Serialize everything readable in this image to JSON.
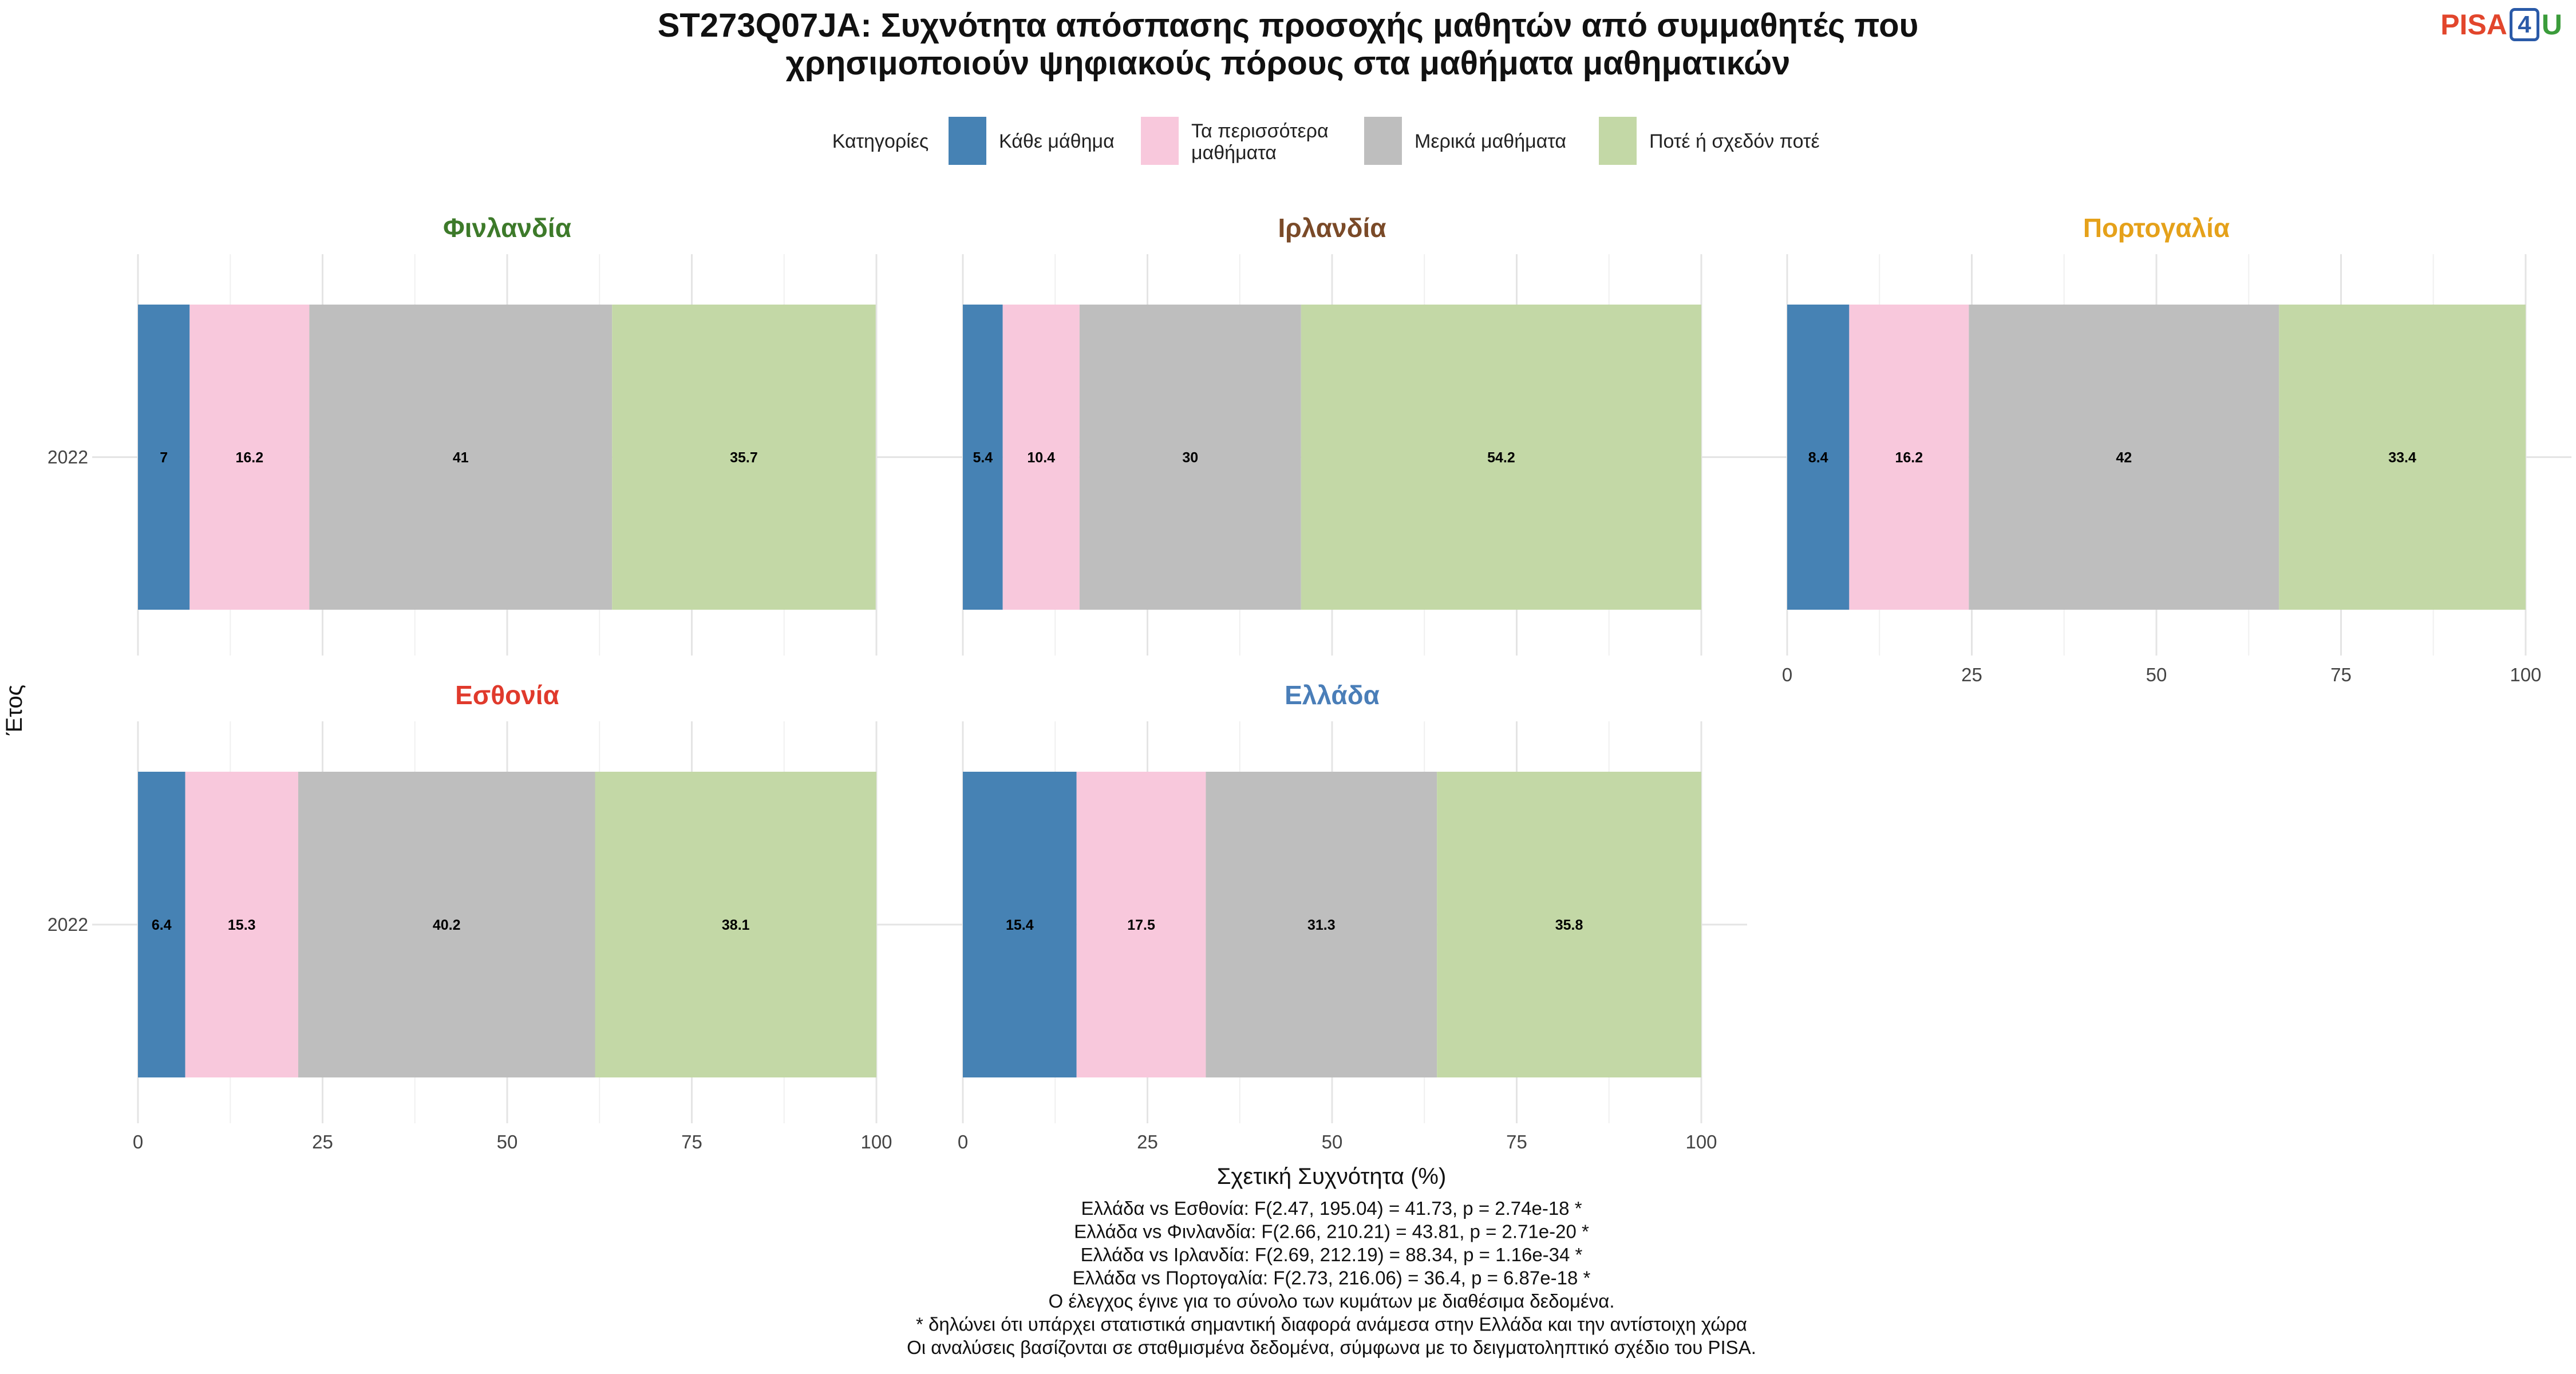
{
  "title_lines": [
    "ST273Q07JA: Συχνότητα απόσπασης προσοχής μαθητών από συμμαθητές που",
    "χρησιμοποιούν ψηφιακούς πόρους στα μαθήματα μαθηματικών"
  ],
  "logo": {
    "part1": "PISA",
    "part2": "4",
    "part3": "U"
  },
  "legend": {
    "title": "Κατηγορίες",
    "entries": [
      {
        "lines": [
          "Κάθε μάθημα"
        ],
        "color": "#4682b4"
      },
      {
        "lines": [
          "Τα περισσότερα",
          "μαθήματα"
        ],
        "color": "#f8c8dc"
      },
      {
        "lines": [
          "Μερικά μαθήματα"
        ],
        "color": "#bebebe"
      },
      {
        "lines": [
          "Ποτέ ή σχεδόν ποτέ"
        ],
        "color": "#c3d8a6"
      }
    ]
  },
  "chart_data": {
    "type": "bar",
    "orientation": "horizontal",
    "stacked": true,
    "xlabel": "Σχετική Συχνότητα (%)",
    "ylabel": "Έτος",
    "xlim": [
      0,
      100
    ],
    "xticks": [
      0,
      25,
      50,
      75,
      100
    ],
    "categories": [
      "Κάθε μάθημα",
      "Τα περισσότερα μαθήματα",
      "Μερικά μαθήματα",
      "Ποτέ ή σχεδόν ποτέ"
    ],
    "panels": [
      {
        "name": "Φινλανδία",
        "color": "#3d7a2a",
        "year": "2022",
        "values": [
          7,
          16.2,
          41,
          35.7
        ],
        "labels": [
          "7",
          "16.2",
          "41",
          "35.7"
        ]
      },
      {
        "name": "Ιρλανδία",
        "color": "#7a4a28",
        "year": "2022",
        "values": [
          5.4,
          10.4,
          30,
          54.2
        ],
        "labels": [
          "5.4",
          "10.4",
          "30",
          "54.2"
        ]
      },
      {
        "name": "Πορτογαλία",
        "color": "#e5a11a",
        "year": "2022",
        "values": [
          8.4,
          16.2,
          42,
          33.4
        ],
        "labels": [
          "8.4",
          "16.2",
          "42",
          "33.4"
        ]
      },
      {
        "name": "Εσθονία",
        "color": "#e03a2c",
        "year": "2022",
        "values": [
          6.4,
          15.3,
          40.2,
          38.1
        ],
        "labels": [
          "6.4",
          "15.3",
          "40.2",
          "38.1"
        ]
      },
      {
        "name": "Ελλάδα",
        "color": "#4a7eb8",
        "year": "2022",
        "values": [
          15.4,
          17.5,
          31.3,
          35.8
        ],
        "labels": [
          "15.4",
          "17.5",
          "31.3",
          "35.8"
        ]
      }
    ]
  },
  "footnotes": [
    "Ελλάδα vs Εσθονία: F(2.47, 195.04) = 41.73, p = 2.74e-18 *",
    "Ελλάδα vs Φινλανδία: F(2.66, 210.21) = 43.81, p = 2.71e-20 *",
    "Ελλάδα vs Ιρλανδία: F(2.69, 212.19) = 88.34, p = 1.16e-34 *",
    "Ελλάδα vs Πορτογαλία: F(2.73, 216.06) = 36.4, p = 6.87e-18 *",
    "Ο έλεγχος έγινε για το σύνολο των κυμάτων με διαθέσιμα δεδομένα.",
    "* δηλώνει ότι υπάρχει στατιστικά σημαντική διαφορά ανάμεσα στην Ελλάδα και την αντίστοιχη χώρα",
    "Οι αναλύσεις βασίζονται σε σταθμισμένα δεδομένα, σύμφωνα με το δειγματοληπτικό σχέδιο του PISA."
  ]
}
